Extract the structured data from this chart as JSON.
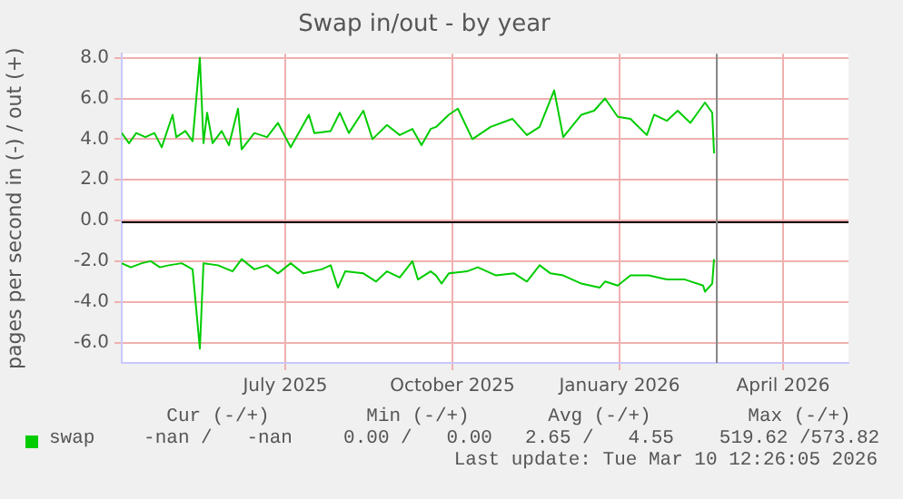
{
  "chart_data": {
    "type": "line",
    "title": "Swap in/out - by year",
    "ylabel": "pages per second in (-) / out (+)",
    "ylim": [
      -7,
      8.2
    ],
    "yticks": [
      {
        "value": -6,
        "label": "-6.0"
      },
      {
        "value": -4,
        "label": "-4.0"
      },
      {
        "value": -2,
        "label": "-2.0"
      },
      {
        "value": 0,
        "label": "0.0"
      },
      {
        "value": 2,
        "label": "2.0"
      },
      {
        "value": 4,
        "label": "4.0"
      },
      {
        "value": 6,
        "label": "6.0"
      },
      {
        "value": 8,
        "label": "8.0"
      }
    ],
    "xlim": [
      "2025-04-17",
      "2026-05-22"
    ],
    "xticks": [
      {
        "value": "2025-07-16",
        "label": "July 2025"
      },
      {
        "value": "2025-10-16",
        "label": "October 2025"
      },
      {
        "value": "2026-01-16",
        "label": "January 2026"
      },
      {
        "value": "2026-04-16",
        "label": "April 2026"
      }
    ],
    "grid": true,
    "legend": "bottom",
    "marker": "none",
    "series": [
      {
        "name": "swap",
        "color": "#00cc00",
        "x": [
          "2025-04-17",
          "2025-04-21",
          "2025-04-25",
          "2025-04-30",
          "2025-05-05",
          "2025-05-09",
          "2025-05-15",
          "2025-05-17",
          "2025-05-22",
          "2025-05-26",
          "2025-05-30",
          "2025-06-01",
          "2025-06-03",
          "2025-06-06",
          "2025-06-11",
          "2025-06-15",
          "2025-06-20",
          "2025-06-22",
          "2025-06-29",
          "2025-07-06",
          "2025-07-12",
          "2025-07-19",
          "2025-07-29",
          "2025-08-01",
          "2025-08-10",
          "2025-08-15",
          "2025-08-20",
          "2025-08-28",
          "2025-09-02",
          "2025-09-10",
          "2025-09-17",
          "2025-09-24",
          "2025-09-29",
          "2025-10-04",
          "2025-10-07",
          "2025-10-14",
          "2025-10-19",
          "2025-10-27",
          "2025-11-06",
          "2025-11-18",
          "2025-11-26",
          "2025-12-03",
          "2025-12-11",
          "2025-12-16",
          "2025-12-26",
          "2026-01-02",
          "2026-01-08",
          "2026-01-15",
          "2026-01-22",
          "2026-01-31",
          "2026-02-04",
          "2026-02-11",
          "2026-02-17",
          "2026-02-24",
          "2026-03-04",
          "2026-03-08",
          "2026-03-09"
        ],
        "values": [
          4.3,
          3.8,
          4.3,
          4.1,
          4.3,
          3.6,
          5.2,
          4.1,
          4.4,
          3.9,
          8.0,
          3.8,
          5.3,
          3.8,
          4.4,
          3.7,
          5.5,
          3.5,
          4.3,
          4.1,
          4.8,
          3.6,
          5.2,
          4.3,
          4.4,
          5.3,
          4.3,
          5.4,
          4.0,
          4.7,
          4.2,
          4.5,
          3.7,
          4.5,
          4.6,
          5.2,
          5.5,
          4.0,
          4.6,
          5.0,
          4.2,
          4.6,
          6.4,
          4.1,
          5.2,
          5.4,
          6.0,
          5.1,
          5.0,
          4.2,
          5.2,
          4.9,
          5.4,
          4.8,
          5.8,
          5.3,
          3.3
        ]
      },
      {
        "color": "#00cc00",
        "x": [
          "2025-04-17",
          "2025-04-22",
          "2025-04-28",
          "2025-05-03",
          "2025-05-08",
          "2025-05-13",
          "2025-05-20",
          "2025-05-26",
          "2025-05-30",
          "2025-06-01",
          "2025-06-09",
          "2025-06-17",
          "2025-06-22",
          "2025-06-29",
          "2025-07-06",
          "2025-07-12",
          "2025-07-19",
          "2025-07-26",
          "2025-08-05",
          "2025-08-10",
          "2025-08-14",
          "2025-08-18",
          "2025-08-28",
          "2025-09-04",
          "2025-09-10",
          "2025-09-17",
          "2025-09-24",
          "2025-09-27",
          "2025-10-04",
          "2025-10-07",
          "2025-10-10",
          "2025-10-14",
          "2025-10-24",
          "2025-10-30",
          "2025-11-09",
          "2025-11-19",
          "2025-11-26",
          "2025-12-03",
          "2025-12-09",
          "2025-12-16",
          "2025-12-26",
          "2026-01-05",
          "2026-01-08",
          "2026-01-15",
          "2026-01-22",
          "2026-02-01",
          "2026-02-11",
          "2026-02-21",
          "2026-03-03",
          "2026-03-04",
          "2026-03-08",
          "2026-03-09"
        ],
        "values": [
          -2.1,
          -2.3,
          -2.1,
          -2.0,
          -2.3,
          -2.2,
          -2.1,
          -2.4,
          -6.3,
          -2.1,
          -2.2,
          -2.5,
          -1.9,
          -2.4,
          -2.2,
          -2.6,
          -2.1,
          -2.6,
          -2.4,
          -2.2,
          -3.3,
          -2.5,
          -2.6,
          -3.0,
          -2.5,
          -2.8,
          -2.0,
          -2.9,
          -2.5,
          -2.7,
          -3.1,
          -2.6,
          -2.5,
          -2.3,
          -2.7,
          -2.6,
          -3.0,
          -2.2,
          -2.6,
          -2.7,
          -3.1,
          -3.3,
          -3.0,
          -3.2,
          -2.7,
          -2.7,
          -2.9,
          -2.9,
          -3.2,
          -3.5,
          -3.1,
          -1.9
        ]
      }
    ],
    "ref_lines": [
      {
        "axis": "y",
        "value": 0,
        "color": "#000000"
      },
      {
        "axis": "x",
        "value": "2026-03-10",
        "color": "#888888"
      }
    ],
    "annotations": [
      "Cur (-/+)",
      "Min (-/+)",
      "Avg (-/+)",
      "Max (-/+)",
      "-nan /   -nan",
      "0.00 /   0.00",
      "2.65 /   4.55",
      "519.62 /573.82",
      "Last update: Tue Mar 10 12:26:05 2026"
    ]
  }
}
